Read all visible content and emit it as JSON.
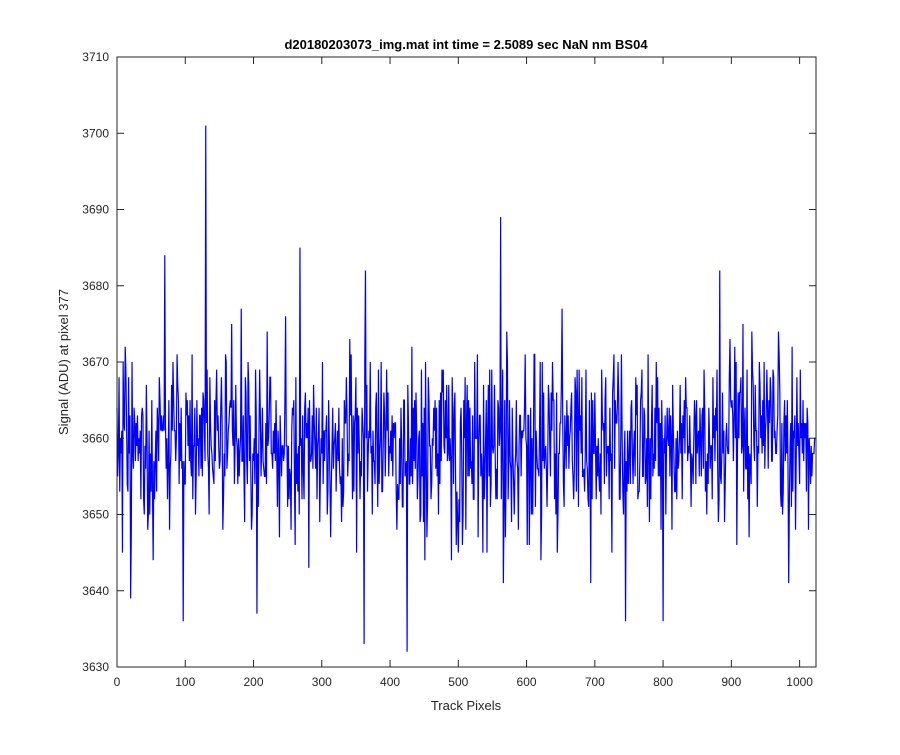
{
  "chart_data": {
    "type": "line",
    "title": "d20180203073_img.mat int time = 2.5089 sec  NaN nm BS04",
    "xlabel": "Track Pixels",
    "ylabel": "Signal (ADU) at pixel 377",
    "xlim": [
      0,
      1024
    ],
    "ylim": [
      3630,
      3710
    ],
    "x_ticks": [
      0,
      100,
      200,
      300,
      400,
      500,
      600,
      700,
      800,
      900,
      1000
    ],
    "y_ticks": [
      3630,
      3640,
      3650,
      3660,
      3670,
      3680,
      3690,
      3700,
      3710
    ],
    "grid": false,
    "legend": "none",
    "line_color": "#0000ff",
    "series": [
      {
        "n_points": 1024,
        "mean": 3659,
        "std_dev": 6,
        "spikes": [
          {
            "x": 20,
            "y": 3639
          },
          {
            "x": 70,
            "y": 3684
          },
          {
            "x": 97,
            "y": 3636
          },
          {
            "x": 130,
            "y": 3701
          },
          {
            "x": 205,
            "y": 3637
          },
          {
            "x": 268,
            "y": 3685
          },
          {
            "x": 362,
            "y": 3633
          },
          {
            "x": 364,
            "y": 3682
          },
          {
            "x": 425,
            "y": 3632
          },
          {
            "x": 562,
            "y": 3689
          },
          {
            "x": 745,
            "y": 3636
          },
          {
            "x": 800,
            "y": 3636
          },
          {
            "x": 883,
            "y": 3682
          }
        ]
      }
    ]
  }
}
